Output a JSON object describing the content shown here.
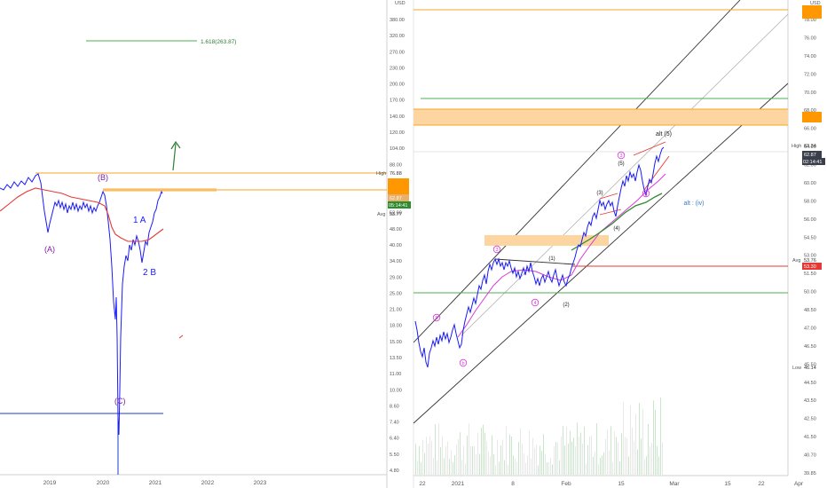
{
  "colors": {
    "price": "#1a1aff",
    "ma_red": "#e53935",
    "ma_pink": "#d63bd6",
    "ma_green": "#2e8b2e",
    "orange_line": "#f5a623",
    "orange_zone": "#fcd5a0",
    "green_line": "#4caf50",
    "channel": "#333333",
    "wave_purple": "#7b1fa2",
    "axis_text": "#555555",
    "label_bg_dark": "#3a3f4b",
    "label_bg_orange": "#ff9800",
    "label_bg_red": "#e53935",
    "label_bg_green": "#2e8b2e"
  },
  "left_chart": {
    "price_axis": {
      "currency": "USD",
      "ticks": [
        "380.00",
        "320.00",
        "270.00",
        "230.00",
        "200.00",
        "170.00",
        "140.00",
        "120.00",
        "104.00",
        "88.00",
        "74.00",
        "62.00",
        "52.00",
        "48.00",
        "40.00",
        "34.00",
        "29.00",
        "25.00",
        "21.00",
        "18.00",
        "15.00",
        "13.50",
        "11.00",
        "10.00",
        "8.60",
        "7.40",
        "6.40",
        "5.50",
        "4.80"
      ],
      "badge_high_label": "High",
      "badge_high_value": "76.88",
      "badge_price": "62.87",
      "badge_timer": "05:14:41",
      "badge_avg_label": "Avg",
      "badge_avg_value": "53.77"
    },
    "time_axis": [
      "2019",
      "2020",
      "2021",
      "2022",
      "2023"
    ],
    "fib_label": "1.618(263.87)",
    "wave_labels": {
      "B": "(B)",
      "A": "(A)",
      "C": "(C)",
      "one_a": "1 A",
      "two_b": "2 B"
    }
  },
  "right_chart": {
    "price_axis": {
      "currency": "USD",
      "ticks": [
        "78.00",
        "76.00",
        "74.00",
        "72.00",
        "70.00",
        "68.00",
        "66.00",
        "64.00",
        "62.00",
        "60.00",
        "58.00",
        "56.00",
        "54.50",
        "53.00",
        "51.50",
        "50.00",
        "48.50",
        "47.00",
        "46.50",
        "45.50",
        "44.50",
        "43.50",
        "42.50",
        "41.50",
        "40.70",
        "39.85"
      ],
      "badge_top_value": "77.??",
      "badge_zone_value": "65.??",
      "badge_high_label": "High",
      "badge_high_value": "63.34",
      "badge_price": "62.87",
      "badge_timer": "02:14:41",
      "badge_avg_label": "Avg",
      "badge_avg_value": "53.76",
      "badge_red_value": "53.30",
      "badge_low_label": "Low",
      "badge_low_value": "46.14"
    },
    "time_axis": [
      "22",
      "2021",
      "8",
      "Feb",
      "15",
      "Mar",
      "15",
      "22",
      "Apr"
    ],
    "wave_labels": {
      "alt5": "alt (5)",
      "alt_iv": "alt : (iv)",
      "w1": "(1)",
      "w2": "(2)",
      "w3": "(3)",
      "w4": "(4)",
      "w5": "(5)",
      "p3a": "3",
      "p4a": "4",
      "p5a": "5",
      "p3b": "3",
      "p4b": "4",
      "p5b": "5",
      "pb": "b"
    }
  }
}
